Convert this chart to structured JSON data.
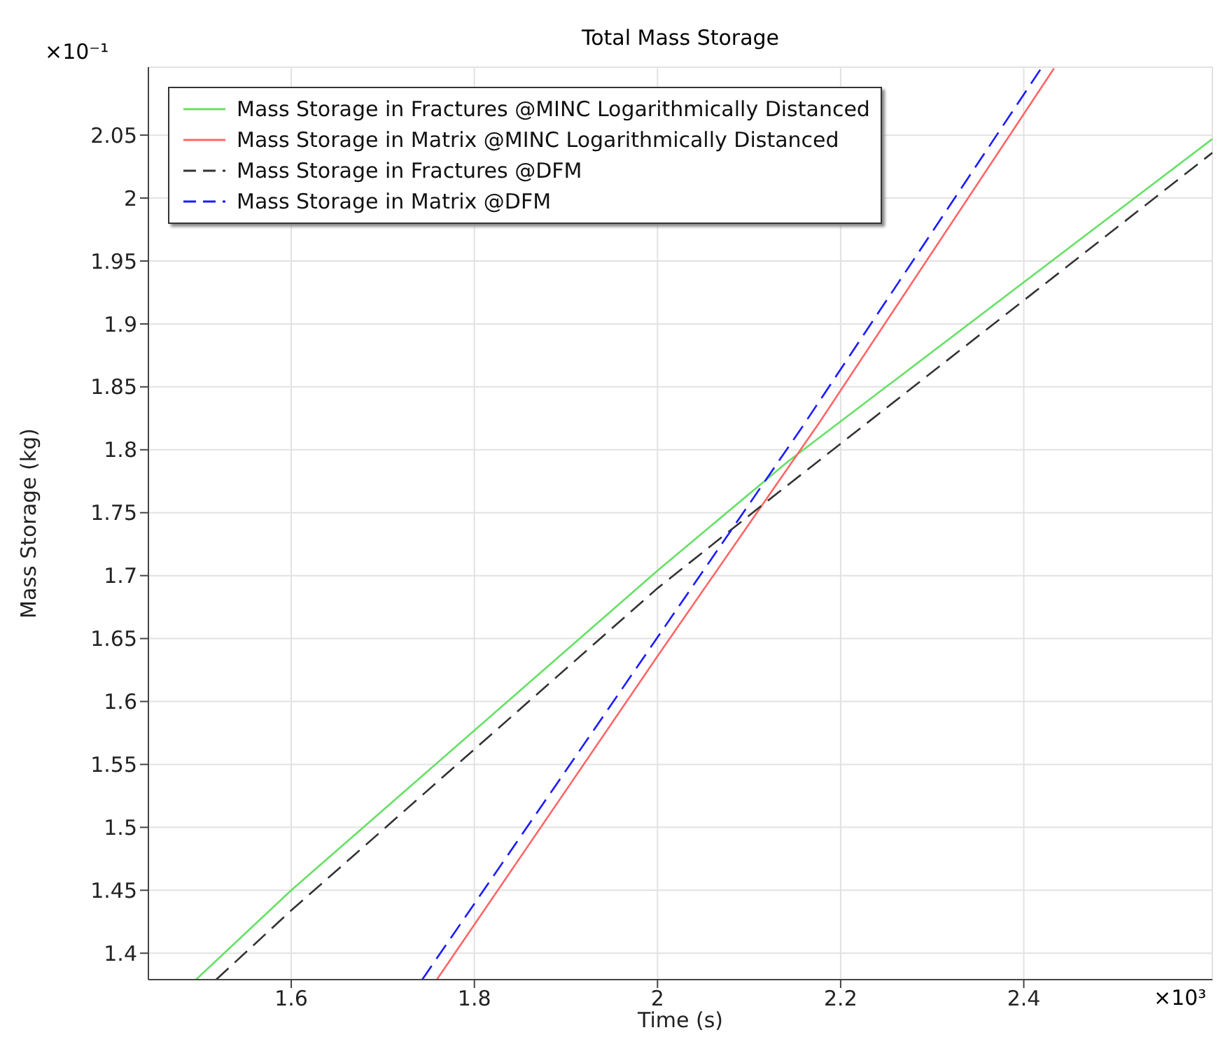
{
  "chart_data": {
    "type": "line",
    "title": "Total Mass Storage",
    "xlabel": "Time (s)",
    "ylabel": "Mass Storage (kg)",
    "xlim": [
      1.444,
      2.606
    ],
    "xticks": [
      1.6,
      1.8,
      2,
      2.2,
      2.4
    ],
    "ylim": [
      1.379,
      2.104
    ],
    "yticks": [
      1.4,
      1.45,
      1.5,
      1.55,
      1.6,
      1.65,
      1.7,
      1.75,
      1.8,
      1.85,
      1.9,
      1.95,
      2,
      2.05
    ],
    "grid": true,
    "legend": "top left",
    "marker": "none",
    "annotations": [
      "×10⁻¹",
      "×10³"
    ],
    "series": [
      {
        "name": "Mass Storage in Fractures @MINC Logarithmically Distanced",
        "color": "#66e066",
        "line_style": "solid",
        "x": [
          1.496,
          1.6,
          2.0,
          2.143,
          2.606
        ],
        "values": [
          1.379,
          1.45,
          1.704,
          1.791,
          2.047
        ]
      },
      {
        "name": "Mass Storage in Matrix @MINC Logarithmically Distanced",
        "color": "#ff6666",
        "line_style": "solid",
        "x": [
          1.759,
          2.0,
          2.178,
          2.433
        ],
        "values": [
          1.379,
          1.636,
          1.823,
          2.103
        ]
      },
      {
        "name": "Mass Storage in Fractures @DFM",
        "color": "#333333",
        "line_style": "dashed",
        "x": [
          1.518,
          1.6,
          2.0,
          2.116,
          2.606
        ],
        "values": [
          1.379,
          1.434,
          1.69,
          1.757,
          2.036
        ]
      },
      {
        "name": "Mass Storage in Matrix @DFM",
        "color": "#1a1aff",
        "line_style": "dashed",
        "x": [
          1.743,
          2.0,
          2.157,
          2.418
        ],
        "values": [
          1.379,
          1.651,
          1.817,
          2.102
        ]
      }
    ]
  }
}
